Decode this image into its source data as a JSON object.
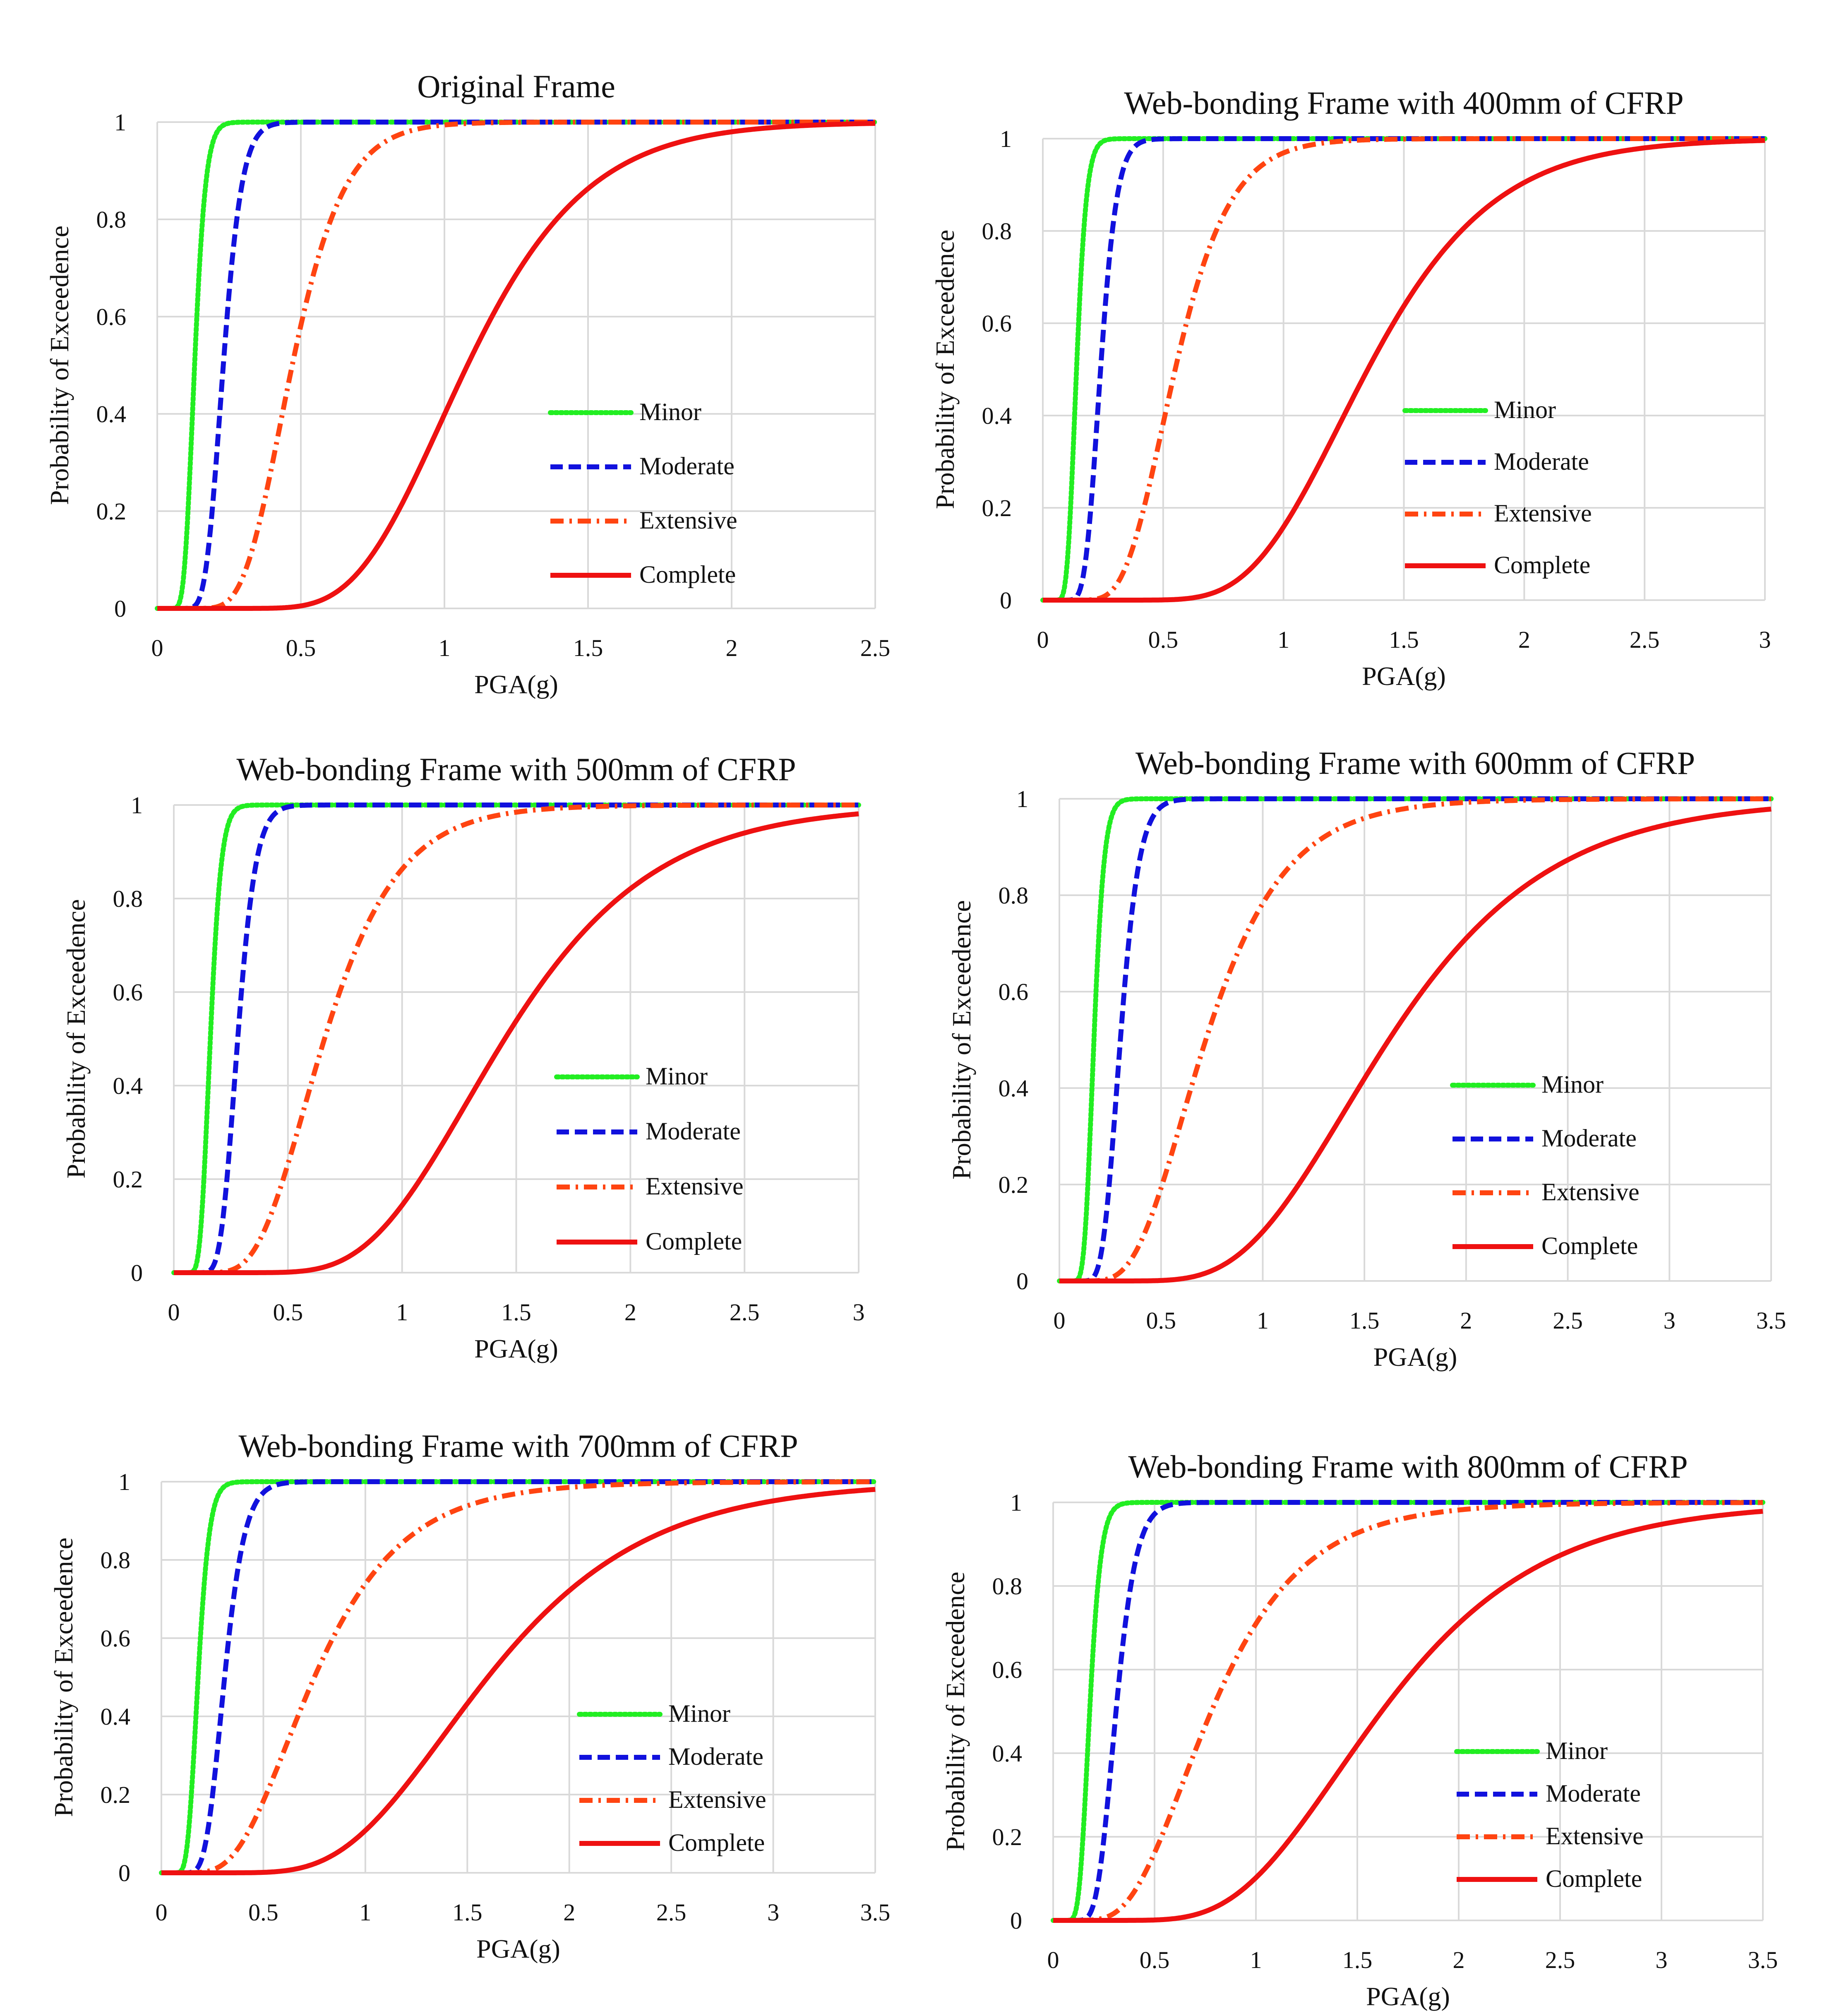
{
  "figure": {
    "background": "#ffffff",
    "gridline_color": "#d9d9d9"
  },
  "styles": {
    "Minor": {
      "color": "#22ee22",
      "dash": "dotted"
    },
    "Moderate": {
      "color": "#1111dd",
      "dash": "dashed"
    },
    "Extensive": {
      "color": "#ff4411",
      "dash": "dash-dot"
    },
    "Complete": {
      "color": "#ee1111",
      "dash": "solid"
    }
  },
  "chart_data": [
    {
      "type": "line",
      "title": "Original Frame",
      "xlabel": "PGA(g)",
      "ylabel": "Probability of Exceedence",
      "xlim": [
        0,
        2.5
      ],
      "ylim": [
        0,
        1
      ],
      "xticks": [
        0,
        0.5,
        1,
        1.5,
        2,
        2.5
      ],
      "xtick_labels": [
        "0",
        "0.5",
        "1",
        "1.5",
        "2",
        "2.5"
      ],
      "yticks": [
        0,
        0.2,
        0.4,
        0.6,
        0.8,
        1
      ],
      "ytick_labels": [
        "0",
        "0.2",
        "0.4",
        "0.6",
        "0.8",
        "1"
      ],
      "grid": true,
      "legend": "right",
      "series": [
        {
          "name": "Minor",
          "median": 0.13,
          "beta": 0.23
        },
        {
          "name": "Moderate",
          "median": 0.23,
          "beta": 0.22
        },
        {
          "name": "Extensive",
          "median": 0.47,
          "beta": 0.3
        },
        {
          "name": "Complete",
          "median": 1.08,
          "beta": 0.3
        }
      ]
    },
    {
      "type": "line",
      "title": "Web-bonding Frame with 400mm of CFRP",
      "xlabel": "PGA(g)",
      "ylabel": "Probability of Exceedence",
      "xlim": [
        0,
        3
      ],
      "ylim": [
        0,
        1
      ],
      "xticks": [
        0,
        0.5,
        1,
        1.5,
        2,
        2.5,
        3
      ],
      "xtick_labels": [
        "0",
        "0.5",
        "1",
        "1.5",
        "2",
        "2.5",
        "3"
      ],
      "yticks": [
        0,
        0.2,
        0.4,
        0.6,
        0.8,
        1
      ],
      "ytick_labels": [
        "0",
        "0.2",
        "0.4",
        "0.6",
        "0.8",
        "1"
      ],
      "grid": true,
      "legend": "right",
      "series": [
        {
          "name": "Minor",
          "median": 0.14,
          "beta": 0.23
        },
        {
          "name": "Moderate",
          "median": 0.24,
          "beta": 0.22
        },
        {
          "name": "Extensive",
          "median": 0.55,
          "beta": 0.32
        },
        {
          "name": "Complete",
          "median": 1.35,
          "beta": 0.3
        }
      ]
    },
    {
      "type": "line",
      "title": "Web-bonding Frame with 500mm of CFRP",
      "xlabel": "PGA(g)",
      "ylabel": "Probability of Exceedence",
      "xlim": [
        0,
        3
      ],
      "ylim": [
        0,
        1
      ],
      "xticks": [
        0,
        0.5,
        1,
        1.5,
        2,
        2.5,
        3
      ],
      "xtick_labels": [
        "0",
        "0.5",
        "1",
        "1.5",
        "2",
        "2.5",
        "3"
      ],
      "yticks": [
        0,
        0.2,
        0.4,
        0.6,
        0.8,
        1
      ],
      "ytick_labels": [
        "0",
        "0.2",
        "0.4",
        "0.6",
        "0.8",
        "1"
      ],
      "grid": true,
      "legend": "right",
      "series": [
        {
          "name": "Minor",
          "median": 0.16,
          "beta": 0.23
        },
        {
          "name": "Moderate",
          "median": 0.28,
          "beta": 0.22
        },
        {
          "name": "Extensive",
          "median": 0.66,
          "beta": 0.38
        },
        {
          "name": "Complete",
          "median": 1.45,
          "beta": 0.35
        }
      ]
    },
    {
      "type": "line",
      "title": "Web-bonding Frame with 600mm of CFRP",
      "xlabel": "PGA(g)",
      "ylabel": "Probability of Exceedence",
      "xlim": [
        0,
        3.5
      ],
      "ylim": [
        0,
        1
      ],
      "xticks": [
        0,
        0.5,
        1,
        1.5,
        2,
        2.5,
        3,
        3.5
      ],
      "xtick_labels": [
        "0",
        "0.5",
        "1",
        "1.5",
        "2",
        "2.5",
        "3",
        "3.5"
      ],
      "yticks": [
        0,
        0.2,
        0.4,
        0.6,
        0.8,
        1
      ],
      "ytick_labels": [
        "0",
        "0.2",
        "0.4",
        "0.6",
        "0.8",
        "1"
      ],
      "grid": true,
      "legend": "right",
      "series": [
        {
          "name": "Minor",
          "median": 0.17,
          "beta": 0.23
        },
        {
          "name": "Moderate",
          "median": 0.3,
          "beta": 0.24
        },
        {
          "name": "Extensive",
          "median": 0.72,
          "beta": 0.42
        },
        {
          "name": "Complete",
          "median": 1.62,
          "beta": 0.38
        }
      ]
    },
    {
      "type": "line",
      "title": "Web-bonding Frame with 700mm of CFRP",
      "xlabel": "PGA(g)",
      "ylabel": "Probability of Exceedence",
      "xlim": [
        0,
        3.5
      ],
      "ylim": [
        0,
        1
      ],
      "xticks": [
        0,
        0.5,
        1,
        1.5,
        2,
        2.5,
        3,
        3.5
      ],
      "xtick_labels": [
        "0",
        "0.5",
        "1",
        "1.5",
        "2",
        "2.5",
        "3",
        "3.5"
      ],
      "yticks": [
        0,
        0.2,
        0.4,
        0.6,
        0.8,
        1
      ],
      "ytick_labels": [
        "0",
        "0.2",
        "0.4",
        "0.6",
        "0.8",
        "1"
      ],
      "grid": true,
      "legend": "right",
      "series": [
        {
          "name": "Minor",
          "median": 0.18,
          "beta": 0.24
        },
        {
          "name": "Moderate",
          "median": 0.31,
          "beta": 0.25
        },
        {
          "name": "Extensive",
          "median": 0.75,
          "beta": 0.45
        },
        {
          "name": "Complete",
          "median": 1.6,
          "beta": 0.38
        }
      ]
    },
    {
      "type": "line",
      "title": "Web-bonding Frame with 800mm of CFRP",
      "xlabel": "PGA(g)",
      "ylabel": "Probability of Exceedence",
      "xlim": [
        0,
        3.5
      ],
      "ylim": [
        0,
        1
      ],
      "xticks": [
        0,
        0.5,
        1,
        1.5,
        2,
        2.5,
        3,
        3.5
      ],
      "xtick_labels": [
        "0",
        "0.5",
        "1",
        "1.5",
        "2",
        "2.5",
        "3",
        "3.5"
      ],
      "yticks": [
        0,
        0.2,
        0.4,
        0.6,
        0.8,
        1
      ],
      "ytick_labels": [
        "0",
        "0.2",
        "0.4",
        "0.6",
        "0.8",
        "1"
      ],
      "grid": true,
      "legend": "right",
      "series": [
        {
          "name": "Minor",
          "median": 0.18,
          "beta": 0.24
        },
        {
          "name": "Moderate",
          "median": 0.31,
          "beta": 0.25
        },
        {
          "name": "Extensive",
          "median": 0.78,
          "beta": 0.45
        },
        {
          "name": "Complete",
          "median": 1.62,
          "beta": 0.38
        }
      ]
    }
  ]
}
